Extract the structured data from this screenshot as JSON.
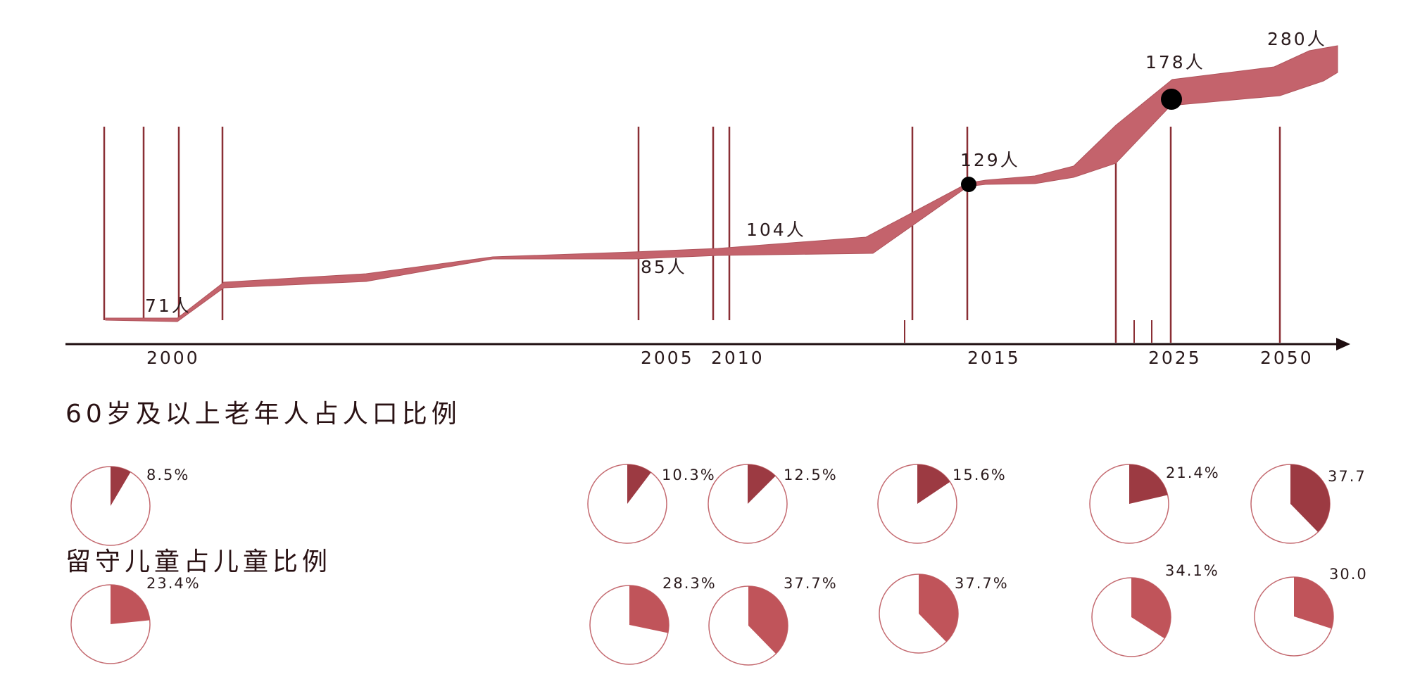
{
  "colors": {
    "band": "#c4636c",
    "band_edge": "#b0545c",
    "vline": "#8a2f35",
    "axis": "#1e0d0f",
    "elderly_slice": "#9c3a42",
    "children_slice": "#c0545a",
    "pie_stroke": "#c46a70",
    "marker": "#000000"
  },
  "chart_data": [
    {
      "type": "area",
      "x_tick_labels": [
        "2000",
        "2005",
        "2010",
        "2015",
        "2025",
        "2050"
      ],
      "value_labels": [
        "71人",
        "85人",
        "104人",
        "129人",
        "178人",
        "280人"
      ],
      "grid": false,
      "note_symbols": [
        "arrow-right-icon",
        "marker-dot-icon"
      ]
    },
    {
      "type": "pie",
      "title": "60岁及以上老年人占人口比例",
      "labels": [
        "8.5%",
        "10.3%",
        "12.5%",
        "15.6%",
        "21.4%",
        "37.7"
      ],
      "values": [
        8.5,
        10.3,
        12.5,
        15.6,
        21.4,
        37.7
      ]
    },
    {
      "type": "pie",
      "title": "留守儿童占儿童比例",
      "labels": [
        "23.4%",
        "28.3%",
        "37.7%",
        "37.7%",
        "34.1%",
        "30.0"
      ],
      "values": [
        23.4,
        28.3,
        37.7,
        37.7,
        34.1,
        30.0
      ]
    }
  ]
}
